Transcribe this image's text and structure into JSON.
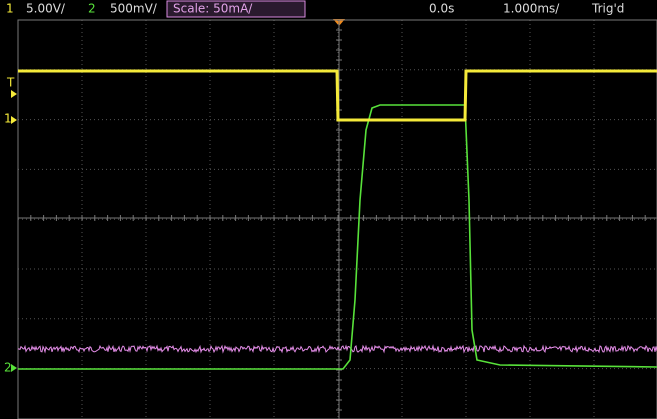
{
  "header": {
    "ch1_number": "1",
    "ch1_scale": "5.00V/",
    "ch2_number": "2",
    "ch2_scale": "500mV/",
    "math_scale": "Scale: 50mA/",
    "time_offset": "0.0s",
    "time_scale": "1.000ms/",
    "trigger_status": "Trig'd"
  },
  "markers": {
    "trigger_level": "T",
    "ch1": "1",
    "ch2": "2"
  }
}
